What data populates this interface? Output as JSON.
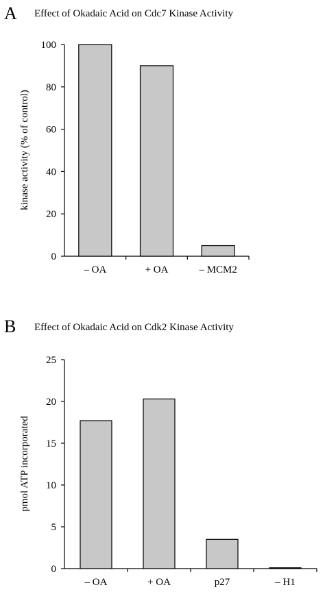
{
  "chart_data": [
    {
      "type": "bar",
      "panel_label": "A",
      "title": "Effect of Okadaic Acid on Cdc7 Kinase Activity",
      "ylabel": "kinase activity (% of control)",
      "xlabel": "",
      "ylim": [
        0,
        100
      ],
      "yticks": [
        0,
        20,
        40,
        60,
        80,
        100
      ],
      "categories": [
        "– OA",
        "+ OA",
        "– MCM2"
      ],
      "values": [
        100,
        90,
        5
      ],
      "bar_color": "#c8c8c8",
      "grid": false
    },
    {
      "type": "bar",
      "panel_label": "B",
      "title": "Effect of Okadaic Acid on Cdk2 Kinase Activity",
      "ylabel": "pmol ATP incorporated",
      "xlabel": "",
      "ylim": [
        0,
        25
      ],
      "yticks": [
        0,
        5,
        10,
        15,
        20,
        25
      ],
      "categories": [
        "– OA",
        "+ OA",
        "p27",
        "– H1"
      ],
      "values": [
        17.7,
        20.3,
        3.5,
        0.1
      ],
      "bar_color": "#c8c8c8",
      "grid": false
    }
  ]
}
